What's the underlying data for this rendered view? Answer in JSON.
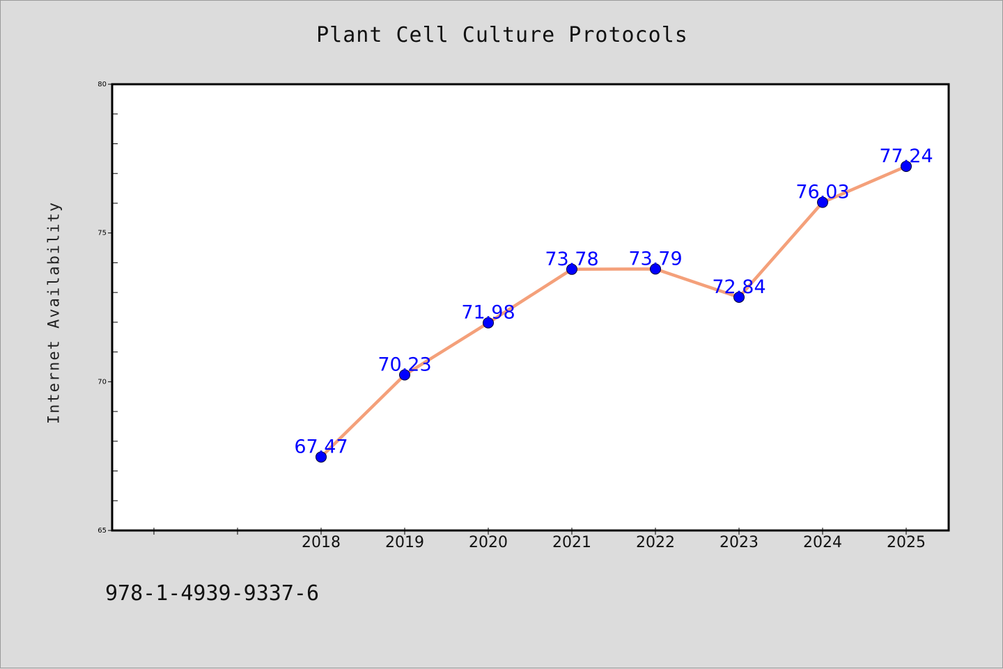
{
  "chart_data": {
    "type": "line",
    "title": "Plant Cell Culture Protocols",
    "xlabel": "",
    "ylabel": "Internet Availability",
    "categories": [
      "2018",
      "2019",
      "2020",
      "2021",
      "2022",
      "2023",
      "2024",
      "2025"
    ],
    "values": [
      67.47,
      70.23,
      71.98,
      73.78,
      73.79,
      72.84,
      76.03,
      77.24
    ],
    "data_labels": [
      "67.47",
      "70.23",
      "71.98",
      "73.78",
      "73.79",
      "72.84",
      "76.03",
      "77.24"
    ],
    "ylim": [
      65,
      80
    ],
    "yticks": [
      65,
      70,
      75,
      80
    ],
    "ytick_labels": [
      "65",
      "70",
      "75",
      "80"
    ],
    "grid": false,
    "legend": "none",
    "colors": {
      "line": "#f4a07a",
      "marker": "#0000ff",
      "data_label": "#0000ff",
      "plot_background": "#ffffff",
      "page_background": "#dcdcdc"
    }
  },
  "footer": {
    "isbn": "978-1-4939-9337-6"
  }
}
